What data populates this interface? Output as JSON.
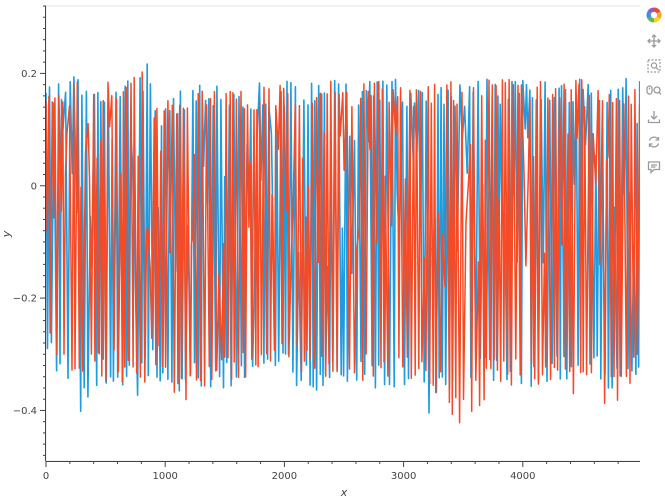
{
  "chart_data": {
    "type": "line",
    "xlabel": "x",
    "ylabel": "y",
    "xlim": [
      0,
      5000
    ],
    "ylim": [
      -0.49,
      0.32
    ],
    "x_ticks": [
      0,
      1000,
      2000,
      3000,
      4000
    ],
    "x_tick_labels": [
      "0",
      "1000",
      "2000",
      "3000",
      "4000"
    ],
    "y_ticks": [
      0.2,
      0,
      -0.2,
      -0.4
    ],
    "y_tick_labels": [
      "0.2",
      "0",
      "−0.2",
      "−0.4"
    ],
    "grid": false,
    "legend": "none",
    "series": [
      {
        "color": "#1f9bdf",
        "x": [
          0,
          60,
          100,
          200,
          270,
          400,
          600,
          750,
          850,
          900,
          1000,
          1100,
          1200,
          1500,
          2000,
          2100,
          2300,
          2500,
          2800,
          3000,
          3200,
          3500,
          3800,
          4000,
          4300,
          4600,
          4800,
          4990
        ],
        "low": [
          -0.3,
          -0.33,
          -0.34,
          -0.36,
          -0.41,
          -0.36,
          -0.35,
          -0.38,
          -0.36,
          -0.33,
          -0.37,
          -0.42,
          -0.37,
          -0.36,
          -0.35,
          -0.36,
          -0.37,
          -0.37,
          -0.36,
          -0.36,
          -0.41,
          -0.37,
          -0.36,
          -0.36,
          -0.36,
          -0.36,
          -0.38,
          -0.36
        ],
        "high": [
          0.18,
          0.19,
          0.2,
          0.19,
          0.2,
          0.2,
          0.19,
          0.2,
          0.22,
          0.15,
          0.15,
          0.17,
          0.18,
          0.18,
          0.19,
          0.19,
          0.19,
          0.19,
          0.19,
          0.19,
          0.19,
          0.19,
          0.19,
          0.2,
          0.19,
          0.19,
          0.19,
          0.23
        ]
      },
      {
        "color": "#f44a25",
        "x": [
          0,
          60,
          100,
          200,
          270,
          400,
          600,
          750,
          850,
          900,
          1000,
          1100,
          1200,
          1500,
          2000,
          2100,
          2300,
          2500,
          2800,
          3000,
          3200,
          3500,
          3800,
          4000,
          4300,
          4600,
          4800,
          4990
        ],
        "low": [
          -0.28,
          -0.33,
          -0.31,
          -0.37,
          -0.36,
          -0.35,
          -0.35,
          -0.37,
          -0.36,
          -0.32,
          -0.35,
          -0.38,
          -0.39,
          -0.36,
          -0.33,
          -0.34,
          -0.35,
          -0.35,
          -0.35,
          -0.35,
          -0.36,
          -0.43,
          -0.35,
          -0.36,
          -0.36,
          -0.39,
          -0.39,
          -0.34
        ],
        "high": [
          0.18,
          0.19,
          0.2,
          0.19,
          0.2,
          0.2,
          0.19,
          0.2,
          0.25,
          0.15,
          0.15,
          0.17,
          0.18,
          0.18,
          0.18,
          0.18,
          0.19,
          0.19,
          0.19,
          0.19,
          0.18,
          0.19,
          0.19,
          0.19,
          0.19,
          0.19,
          0.19,
          0.19
        ]
      }
    ]
  },
  "toolbar": {
    "tools": [
      {
        "icon": "bokeh-logo-icon"
      },
      {
        "icon": "pan-icon"
      },
      {
        "icon": "box-zoom-icon"
      },
      {
        "icon": "wheel-zoom-icon"
      },
      {
        "icon": "save-icon"
      },
      {
        "icon": "reset-icon"
      },
      {
        "icon": "hover-icon"
      }
    ]
  }
}
